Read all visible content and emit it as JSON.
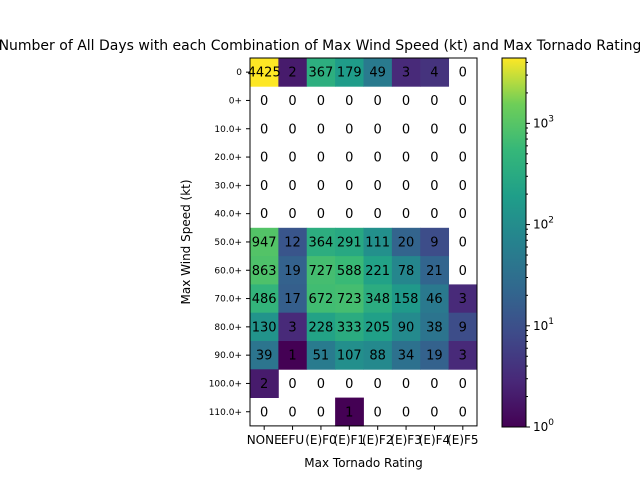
{
  "chart_data": {
    "type": "heatmap",
    "title": "Number of All Days with each Combination of Max Wind Speed (kt) and Max Tornado Rating",
    "xlabel": "Max Tornado Rating",
    "ylabel": "Max Wind Speed (kt)",
    "x_categories": [
      "NONE",
      "EFU",
      "(E)F0",
      "(E)F1",
      "(E)F2",
      "(E)F3",
      "(E)F4",
      "(E)F5"
    ],
    "y_categories": [
      "0",
      "0+",
      "10.0+",
      "20.0+",
      "30.0+",
      "40.0+",
      "50.0+",
      "60.0+",
      "70.0+",
      "80.0+",
      "90.0+",
      "100.0+",
      "110.0+"
    ],
    "values": [
      [
        4425,
        2,
        367,
        179,
        49,
        3,
        4,
        0
      ],
      [
        0,
        0,
        0,
        0,
        0,
        0,
        0,
        0
      ],
      [
        0,
        0,
        0,
        0,
        0,
        0,
        0,
        0
      ],
      [
        0,
        0,
        0,
        0,
        0,
        0,
        0,
        0
      ],
      [
        0,
        0,
        0,
        0,
        0,
        0,
        0,
        0
      ],
      [
        0,
        0,
        0,
        0,
        0,
        0,
        0,
        0
      ],
      [
        947,
        12,
        364,
        291,
        111,
        20,
        9,
        0
      ],
      [
        863,
        19,
        727,
        588,
        221,
        78,
        21,
        0
      ],
      [
        486,
        17,
        672,
        723,
        348,
        158,
        46,
        3
      ],
      [
        130,
        3,
        228,
        333,
        205,
        90,
        38,
        9
      ],
      [
        39,
        1,
        51,
        107,
        88,
        34,
        19,
        3
      ],
      [
        2,
        0,
        0,
        0,
        0,
        0,
        0,
        0
      ],
      [
        0,
        0,
        0,
        1,
        0,
        0,
        0,
        0
      ]
    ],
    "colorscale": "viridis",
    "color_scale_type": "log",
    "zero_color": "#ffffff",
    "colorbar": {
      "range": [
        1,
        4425
      ],
      "ticks": [
        1,
        10,
        100,
        1000
      ],
      "tick_labels": [
        "10^0",
        "10^1",
        "10^2",
        "10^3"
      ]
    },
    "grid": false
  }
}
